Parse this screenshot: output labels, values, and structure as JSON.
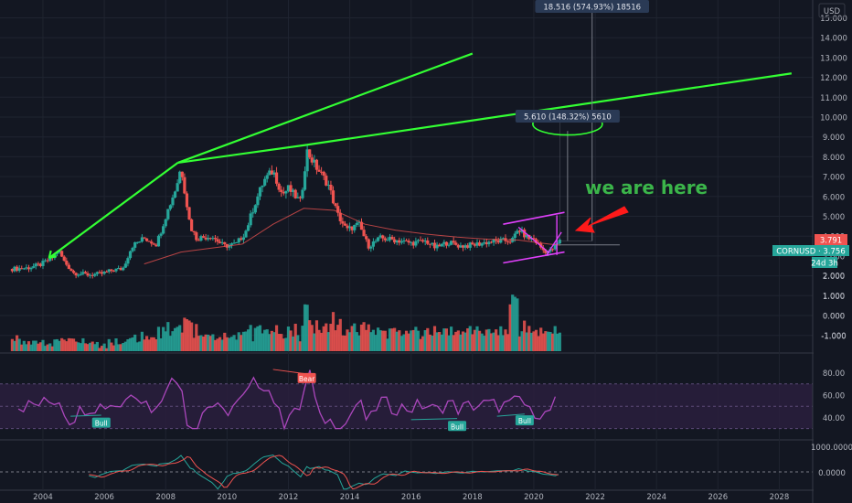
{
  "colors": {
    "background": "#131722",
    "grid": "#1f2430",
    "up": "#26a69a",
    "down": "#ef5350",
    "trendline": "#33ff33",
    "channel": "#e040fb",
    "rsi_line": "#ab47bc",
    "rsi_band": "#2a1f3d",
    "macd_green": "#26a69a",
    "macd_red": "#ef5350",
    "annotation_text": "#3bb54a",
    "arrow": "#ff1a1a",
    "price_tag_bg": "#2a3a55"
  },
  "chart_data": {
    "type": "candlestick",
    "symbol": "CORNUSD",
    "currency_label": "USD",
    "price_axis": {
      "min": -2,
      "max": 16,
      "ticks": [
        "-1.000",
        "0.000",
        "1.000",
        "2.000",
        "3.000",
        "4.000",
        "5.000",
        "6.000",
        "7.000",
        "8.000",
        "9.000",
        "10.000",
        "11.000",
        "12.000",
        "13.000",
        "14.000",
        "15.000"
      ]
    },
    "time_axis": {
      "min": 2002.6,
      "max": 2029.0,
      "ticks": [
        "2004",
        "2006",
        "2008",
        "2010",
        "2012",
        "2014",
        "2016",
        "2018",
        "2020",
        "2022",
        "2024",
        "2026",
        "2028"
      ]
    },
    "price_path": [
      [
        2003.0,
        2.35
      ],
      [
        2003.5,
        2.4
      ],
      [
        2003.9,
        2.55
      ],
      [
        2004.3,
        2.9
      ],
      [
        2004.5,
        3.3
      ],
      [
        2004.7,
        2.7
      ],
      [
        2005.0,
        2.15
      ],
      [
        2005.5,
        2.05
      ],
      [
        2005.9,
        2.1
      ],
      [
        2006.3,
        2.3
      ],
      [
        2006.6,
        2.35
      ],
      [
        2006.9,
        3.5
      ],
      [
        2007.3,
        3.9
      ],
      [
        2007.7,
        3.6
      ],
      [
        2008.0,
        5.0
      ],
      [
        2008.35,
        6.5
      ],
      [
        2008.5,
        7.5
      ],
      [
        2008.8,
        4.5
      ],
      [
        2009.0,
        3.9
      ],
      [
        2009.5,
        4.0
      ],
      [
        2009.9,
        3.5
      ],
      [
        2010.3,
        3.6
      ],
      [
        2010.6,
        4.2
      ],
      [
        2010.9,
        5.6
      ],
      [
        2011.2,
        6.8
      ],
      [
        2011.5,
        7.3
      ],
      [
        2011.8,
        6.1
      ],
      [
        2012.0,
        6.4
      ],
      [
        2012.4,
        5.7
      ],
      [
        2012.6,
        8.3
      ],
      [
        2012.9,
        7.5
      ],
      [
        2013.3,
        6.6
      ],
      [
        2013.6,
        5.1
      ],
      [
        2013.9,
        4.3
      ],
      [
        2014.3,
        4.6
      ],
      [
        2014.6,
        3.5
      ],
      [
        2015.0,
        3.9
      ],
      [
        2015.5,
        3.8
      ],
      [
        2016.0,
        3.65
      ],
      [
        2016.5,
        3.75
      ],
      [
        2016.8,
        3.4
      ],
      [
        2017.2,
        3.7
      ],
      [
        2017.6,
        3.5
      ],
      [
        2018.0,
        3.55
      ],
      [
        2018.5,
        3.7
      ],
      [
        2018.9,
        3.75
      ],
      [
        2019.3,
        3.8
      ],
      [
        2019.5,
        4.35
      ],
      [
        2019.8,
        3.9
      ],
      [
        2020.0,
        3.85
      ],
      [
        2020.3,
        3.3
      ],
      [
        2020.5,
        3.2
      ],
      [
        2020.7,
        3.5
      ],
      [
        2020.85,
        3.76
      ]
    ],
    "moving_average": [
      [
        2007.3,
        2.6
      ],
      [
        2008.5,
        3.2
      ],
      [
        2009.5,
        3.4
      ],
      [
        2010.5,
        3.6
      ],
      [
        2011.5,
        4.6
      ],
      [
        2012.5,
        5.4
      ],
      [
        2013.5,
        5.3
      ],
      [
        2014.5,
        4.6
      ],
      [
        2015.5,
        4.3
      ],
      [
        2016.5,
        4.1
      ],
      [
        2017.5,
        3.95
      ],
      [
        2018.5,
        3.85
      ],
      [
        2019.5,
        3.8
      ],
      [
        2020.5,
        3.6
      ],
      [
        2020.85,
        3.55
      ]
    ],
    "trendlines": [
      {
        "from": [
          2004.2,
          2.9
        ],
        "to": [
          2008.4,
          7.7
        ]
      },
      {
        "from": [
          2008.4,
          7.7
        ],
        "to": [
          2018.0,
          13.2
        ]
      },
      {
        "from": [
          2008.4,
          7.7
        ],
        "to": [
          2012.6,
          8.6
        ]
      },
      {
        "from": [
          2012.6,
          8.6
        ],
        "to": [
          2028.4,
          12.2
        ]
      }
    ],
    "volume_axis": {
      "ticks": [
        "-1.000",
        "0.000",
        "1.000",
        "2.000"
      ]
    },
    "rsi": {
      "ticks": [
        "40.00",
        "60.00",
        "80.00"
      ],
      "band": [
        30,
        70
      ],
      "labels": [
        {
          "text": "Bull",
          "x": 2005.9,
          "y": 39
        },
        {
          "text": "Bear",
          "x": 2012.6,
          "y": 79
        },
        {
          "text": "Bull",
          "x": 2017.5,
          "y": 36
        },
        {
          "text": "Bull",
          "x": 2019.7,
          "y": 41
        }
      ]
    },
    "macd": {
      "ticks": [
        "1000.0000",
        "0.0000"
      ]
    },
    "measurements": [
      {
        "label": "5.610 (148.32%) 5610",
        "price": 10.0
      },
      {
        "label": "18.516 (574.93%) 18516",
        "price": 16.4
      }
    ],
    "last_price": {
      "value": "3.791"
    },
    "close_price": {
      "symbol": "CORNUSD",
      "value": "3.756"
    },
    "countdown": "24d 3h",
    "annotation": "we are here"
  }
}
